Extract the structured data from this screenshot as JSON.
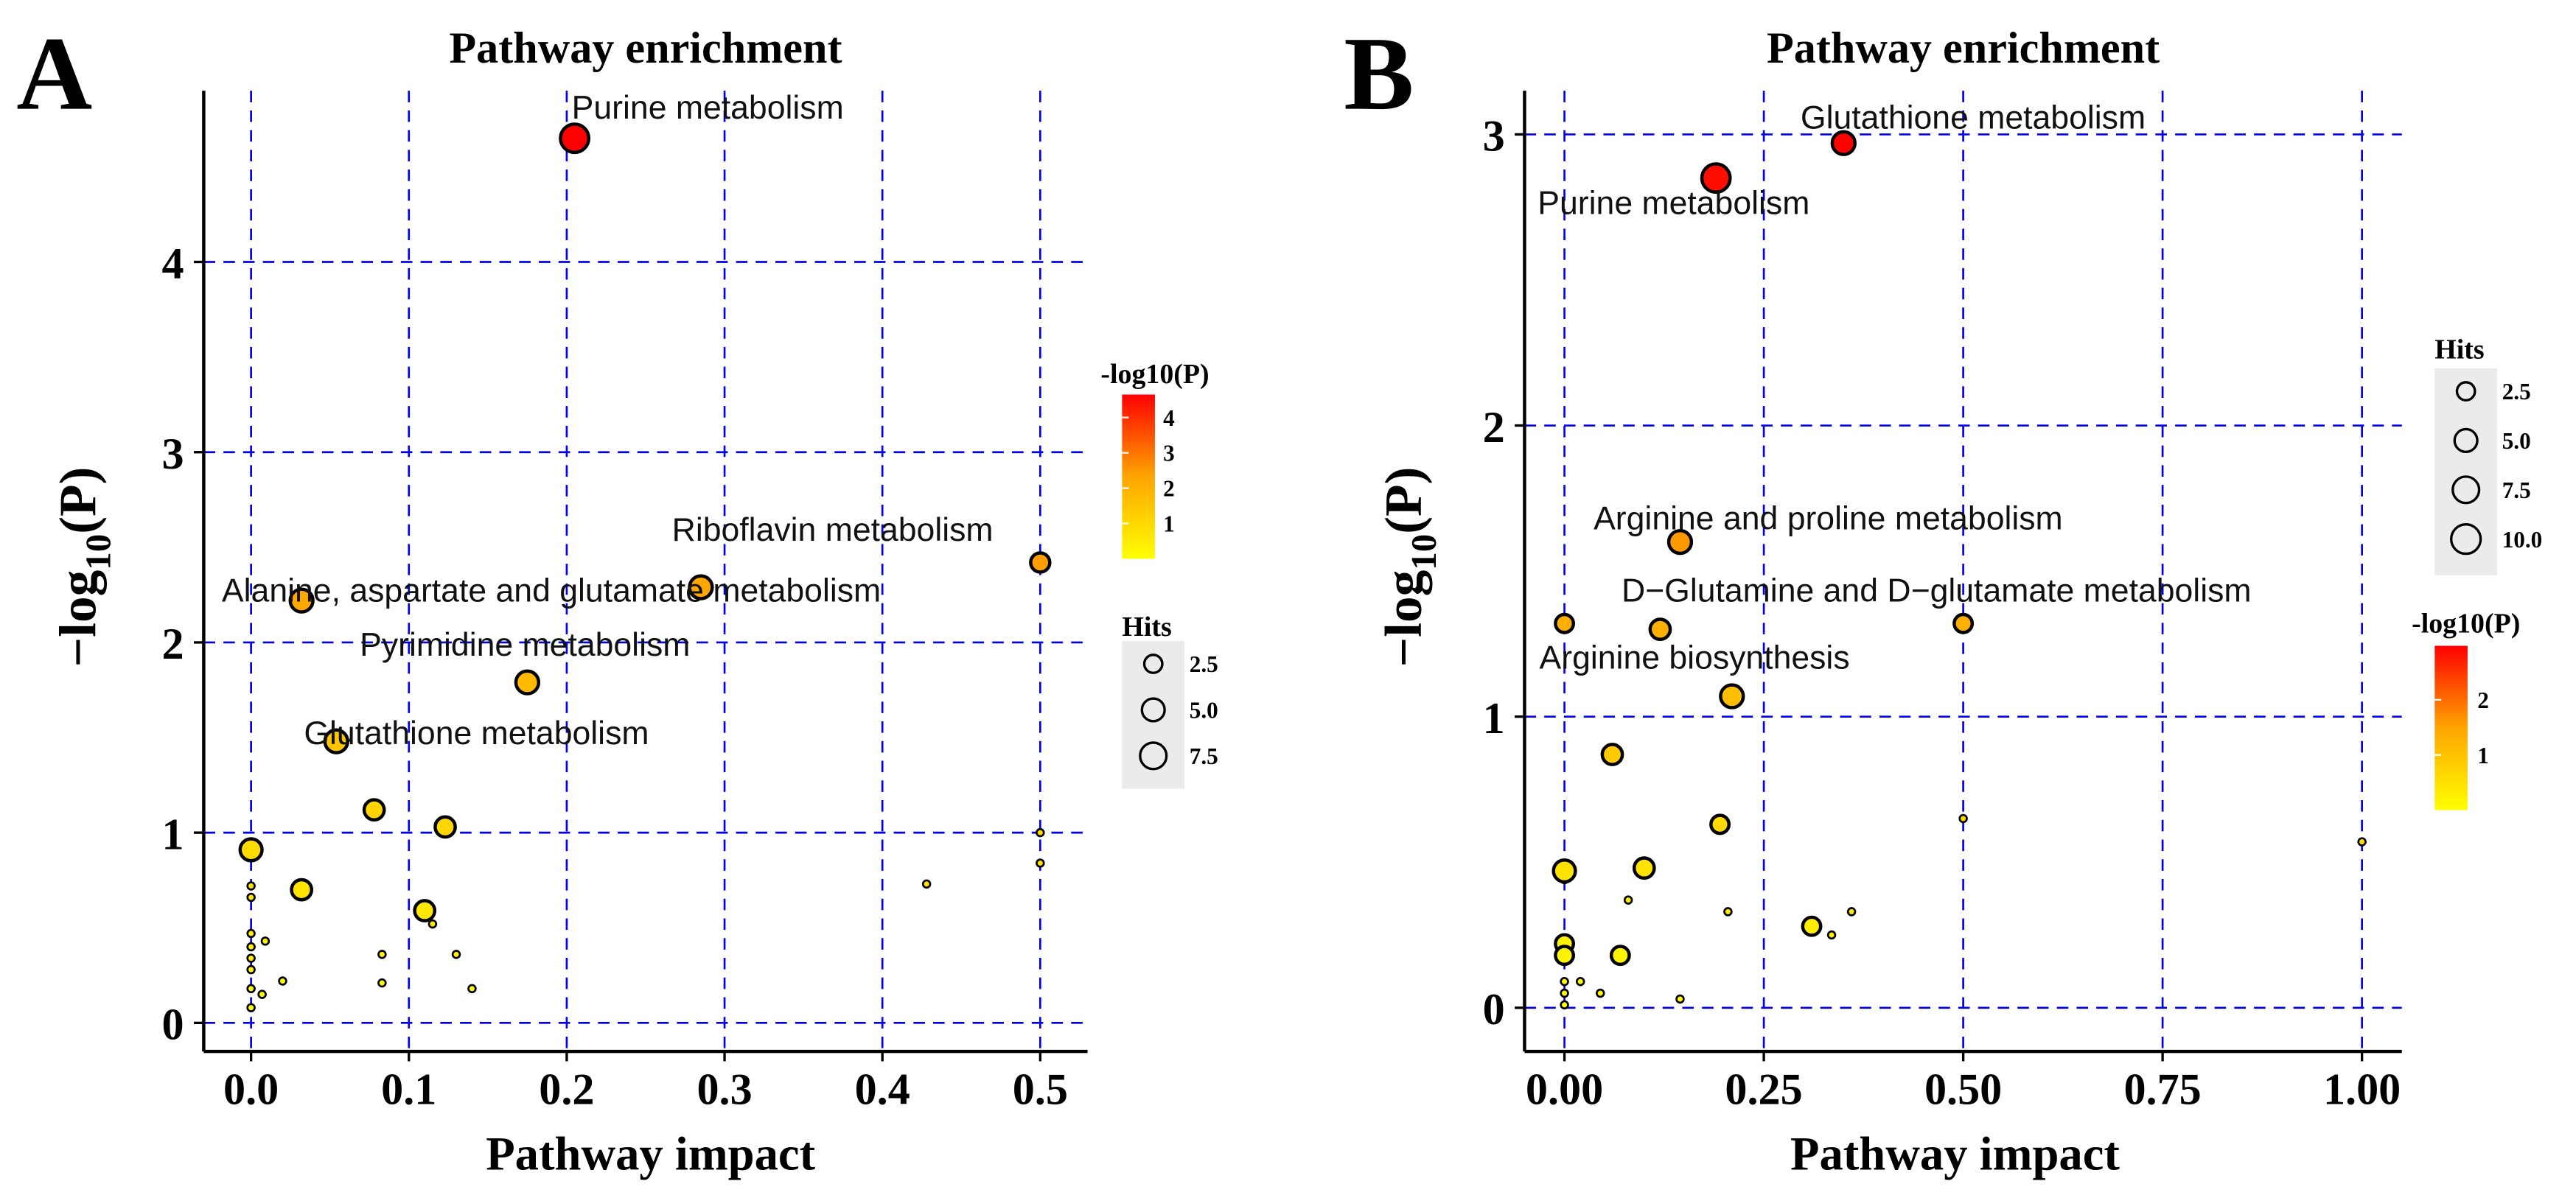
{
  "chart_data": [
    {
      "panel_letter": "A",
      "type": "scatter",
      "title": "Pathway enrichment",
      "xlabel": "Pathway impact",
      "ylabel_main": "−log",
      "ylabel_sub": "10",
      "ylabel_tail": "(P)",
      "xlim": [
        -0.03,
        0.53
      ],
      "ylim": [
        -0.15,
        4.9
      ],
      "xticks": [
        0.0,
        0.1,
        0.2,
        0.3,
        0.4,
        0.5
      ],
      "xtick_labels": [
        "0.0",
        "0.1",
        "0.2",
        "0.3",
        "0.4",
        "0.5"
      ],
      "yticks": [
        0,
        1,
        2,
        3,
        4
      ],
      "ytick_labels": [
        "0",
        "1",
        "2",
        "3",
        "4"
      ],
      "grid": true,
      "color_scale_max": 4.65,
      "points": [
        {
          "x": 0.205,
          "y": 4.65,
          "hits": 9,
          "label": "Purine metabolism"
        },
        {
          "x": 0.285,
          "y": 2.29,
          "hits": 5,
          "label": "Riboflavin metabolism"
        },
        {
          "x": 0.5,
          "y": 2.42,
          "hits": 3,
          "label": ""
        },
        {
          "x": 0.032,
          "y": 2.22,
          "hits": 5,
          "label": "Alanine, aspartate and glutamate metabolism"
        },
        {
          "x": 0.175,
          "y": 1.79,
          "hits": 5,
          "label": "Pyrimidine metabolism"
        },
        {
          "x": 0.054,
          "y": 1.48,
          "hits": 5,
          "label": "Glutathione metabolism"
        },
        {
          "x": 0.078,
          "y": 1.12,
          "hits": 3.5,
          "label": ""
        },
        {
          "x": 0.123,
          "y": 1.03,
          "hits": 3.5,
          "label": ""
        },
        {
          "x": 0.0,
          "y": 0.91,
          "hits": 4.5,
          "label": ""
        },
        {
          "x": 0.032,
          "y": 0.7,
          "hits": 3.5,
          "label": ""
        },
        {
          "x": 0.11,
          "y": 0.59,
          "hits": 3.5,
          "label": ""
        },
        {
          "x": 0.5,
          "y": 1.0,
          "hits": 0.5,
          "label": ""
        },
        {
          "x": 0.5,
          "y": 0.84,
          "hits": 0.5,
          "label": ""
        },
        {
          "x": 0.428,
          "y": 0.73,
          "hits": 0.5,
          "label": ""
        },
        {
          "x": 0.0,
          "y": 0.72,
          "hits": 0.6,
          "label": ""
        },
        {
          "x": 0.0,
          "y": 0.66,
          "hits": 0.6,
          "label": ""
        },
        {
          "x": 0.0,
          "y": 0.47,
          "hits": 0.6,
          "label": ""
        },
        {
          "x": 0.0,
          "y": 0.4,
          "hits": 0.6,
          "label": ""
        },
        {
          "x": 0.0,
          "y": 0.34,
          "hits": 0.6,
          "label": ""
        },
        {
          "x": 0.0,
          "y": 0.28,
          "hits": 0.6,
          "label": ""
        },
        {
          "x": 0.0,
          "y": 0.18,
          "hits": 0.6,
          "label": ""
        },
        {
          "x": 0.0,
          "y": 0.08,
          "hits": 0.6,
          "label": ""
        },
        {
          "x": 0.009,
          "y": 0.43,
          "hits": 0.6,
          "label": ""
        },
        {
          "x": 0.007,
          "y": 0.15,
          "hits": 0.6,
          "label": ""
        },
        {
          "x": 0.02,
          "y": 0.22,
          "hits": 0.6,
          "label": ""
        },
        {
          "x": 0.083,
          "y": 0.36,
          "hits": 0.6,
          "label": ""
        },
        {
          "x": 0.083,
          "y": 0.21,
          "hits": 0.6,
          "label": ""
        },
        {
          "x": 0.115,
          "y": 0.52,
          "hits": 0.6,
          "label": ""
        },
        {
          "x": 0.13,
          "y": 0.36,
          "hits": 0.6,
          "label": ""
        },
        {
          "x": 0.14,
          "y": 0.18,
          "hits": 0.6,
          "label": ""
        }
      ],
      "legend_color": {
        "title": "-log10(P)",
        "ticks": [
          1,
          2,
          3,
          4
        ],
        "tick_labels": [
          "1",
          "2",
          "3",
          "4"
        ]
      },
      "legend_size": {
        "title": "Hits",
        "values": [
          2.5,
          5.0,
          7.5
        ],
        "labels": [
          "2.5",
          "5.0",
          "7.5"
        ]
      }
    },
    {
      "panel_letter": "B",
      "type": "scatter",
      "title": "Pathway enrichment",
      "xlabel": "Pathway impact",
      "ylabel_main": "−log",
      "ylabel_sub": "10",
      "ylabel_tail": "(P)",
      "xlim": [
        -0.05,
        1.05
      ],
      "ylim": [
        -0.15,
        3.15
      ],
      "xticks": [
        0.0,
        0.25,
        0.5,
        0.75,
        1.0
      ],
      "xtick_labels": [
        "0.00",
        "0.25",
        "0.50",
        "0.75",
        "1.00"
      ],
      "yticks": [
        0,
        1,
        2,
        3
      ],
      "ytick_labels": [
        "0",
        "1",
        "2",
        "3"
      ],
      "grid": true,
      "color_scale_max": 2.98,
      "points": [
        {
          "x": 0.35,
          "y": 2.97,
          "hits": 5,
          "label": "Glutathione metabolism"
        },
        {
          "x": 0.19,
          "y": 2.85,
          "hits": 9,
          "label": "Purine metabolism"
        },
        {
          "x": 0.145,
          "y": 1.6,
          "hits": 5,
          "label": "Arginine and proline metabolism"
        },
        {
          "x": 0.5,
          "y": 1.32,
          "hits": 2.5,
          "label": "D−Glutamine and D−glutamate metabolism"
        },
        {
          "x": 0.12,
          "y": 1.3,
          "hits": 3.5,
          "label": ""
        },
        {
          "x": 0.0,
          "y": 1.32,
          "hits": 2.5,
          "label": ""
        },
        {
          "x": 0.21,
          "y": 1.07,
          "hits": 5,
          "label": "Arginine biosynthesis"
        },
        {
          "x": 0.06,
          "y": 0.87,
          "hits": 3.5,
          "label": ""
        },
        {
          "x": 0.195,
          "y": 0.63,
          "hits": 2.5,
          "label": ""
        },
        {
          "x": 0.1,
          "y": 0.48,
          "hits": 3.5,
          "label": ""
        },
        {
          "x": 0.0,
          "y": 0.47,
          "hits": 4.5,
          "label": ""
        },
        {
          "x": 0.0,
          "y": 0.22,
          "hits": 2.5,
          "label": ""
        },
        {
          "x": 0.0,
          "y": 0.18,
          "hits": 2.5,
          "label": ""
        },
        {
          "x": 0.07,
          "y": 0.18,
          "hits": 2.5,
          "label": ""
        },
        {
          "x": 0.31,
          "y": 0.28,
          "hits": 2.5,
          "label": ""
        },
        {
          "x": 1.0,
          "y": 0.57,
          "hits": 0.5,
          "label": ""
        },
        {
          "x": 0.5,
          "y": 0.65,
          "hits": 0.5,
          "label": ""
        },
        {
          "x": 0.0,
          "y": 0.44,
          "hits": 0.5,
          "label": ""
        },
        {
          "x": 0.02,
          "y": 0.09,
          "hits": 0.5,
          "label": ""
        },
        {
          "x": 0.0,
          "y": 0.09,
          "hits": 0.5,
          "label": ""
        },
        {
          "x": 0.0,
          "y": 0.05,
          "hits": 0.5,
          "label": ""
        },
        {
          "x": 0.0,
          "y": 0.01,
          "hits": 0.5,
          "label": ""
        },
        {
          "x": 0.045,
          "y": 0.05,
          "hits": 0.5,
          "label": ""
        },
        {
          "x": 0.08,
          "y": 0.37,
          "hits": 0.5,
          "label": ""
        },
        {
          "x": 0.205,
          "y": 0.33,
          "hits": 0.5,
          "label": ""
        },
        {
          "x": 0.335,
          "y": 0.25,
          "hits": 0.5,
          "label": ""
        },
        {
          "x": 0.36,
          "y": 0.33,
          "hits": 0.5,
          "label": ""
        },
        {
          "x": 0.145,
          "y": 0.03,
          "hits": 0.5,
          "label": ""
        }
      ],
      "legend_color": {
        "title": "-log10(P)",
        "ticks": [
          1,
          2
        ],
        "tick_labels": [
          "1",
          "2"
        ]
      },
      "legend_size": {
        "title": "Hits",
        "values": [
          2.5,
          5.0,
          7.5,
          10.0
        ],
        "labels": [
          "2.5",
          "5.0",
          "7.5",
          "10.0"
        ]
      }
    }
  ]
}
